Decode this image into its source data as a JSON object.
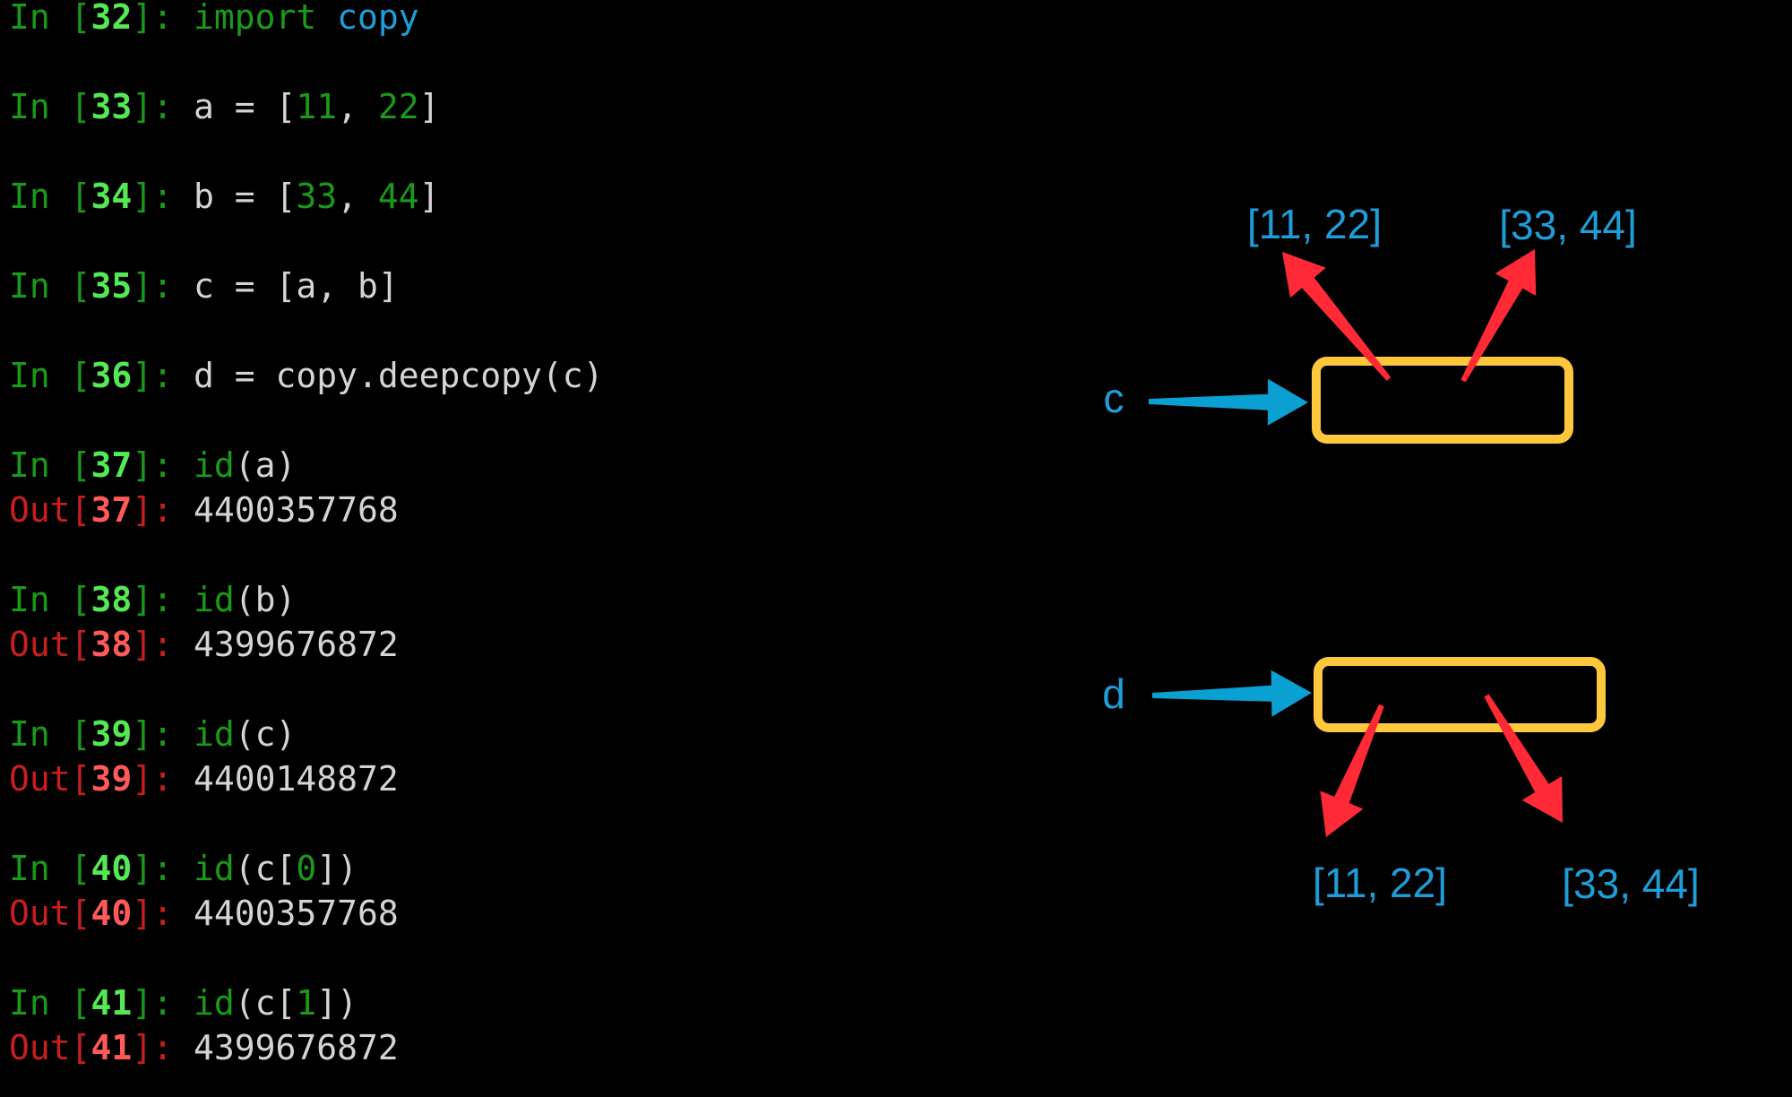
{
  "console": {
    "lines": [
      {
        "row": 0,
        "prompt": "In",
        "num": "32",
        "type": "in",
        "code": [
          {
            "t": "import",
            "c": "kw"
          },
          {
            "t": " ",
            "c": "txt"
          },
          {
            "t": "copy",
            "c": "mod"
          }
        ]
      },
      {
        "row": 2,
        "prompt": "In",
        "num": "33",
        "type": "in",
        "code": [
          {
            "t": "a = [",
            "c": "txt"
          },
          {
            "t": "11",
            "c": "num"
          },
          {
            "t": ", ",
            "c": "txt"
          },
          {
            "t": "22",
            "c": "num"
          },
          {
            "t": "]",
            "c": "txt"
          }
        ]
      },
      {
        "row": 4,
        "prompt": "In",
        "num": "34",
        "type": "in",
        "code": [
          {
            "t": "b = [",
            "c": "txt"
          },
          {
            "t": "33",
            "c": "num"
          },
          {
            "t": ", ",
            "c": "txt"
          },
          {
            "t": "44",
            "c": "num"
          },
          {
            "t": "]",
            "c": "txt"
          }
        ]
      },
      {
        "row": 6,
        "prompt": "In",
        "num": "35",
        "type": "in",
        "code": [
          {
            "t": "c = [a, b]",
            "c": "txt"
          }
        ]
      },
      {
        "row": 8,
        "prompt": "In",
        "num": "36",
        "type": "in",
        "code": [
          {
            "t": "d = copy.deepcopy(c)",
            "c": "txt"
          }
        ]
      },
      {
        "row": 10,
        "prompt": "In",
        "num": "37",
        "type": "in",
        "code": [
          {
            "t": "id",
            "c": "kw"
          },
          {
            "t": "(a)",
            "c": "txt"
          }
        ]
      },
      {
        "row": 11,
        "prompt": "Out",
        "num": "37",
        "type": "out",
        "code": [
          {
            "t": "4400357768",
            "c": "txt"
          }
        ]
      },
      {
        "row": 13,
        "prompt": "In",
        "num": "38",
        "type": "in",
        "code": [
          {
            "t": "id",
            "c": "kw"
          },
          {
            "t": "(b)",
            "c": "txt"
          }
        ]
      },
      {
        "row": 14,
        "prompt": "Out",
        "num": "38",
        "type": "out",
        "code": [
          {
            "t": "4399676872",
            "c": "txt"
          }
        ]
      },
      {
        "row": 16,
        "prompt": "In",
        "num": "39",
        "type": "in",
        "code": [
          {
            "t": "id",
            "c": "kw"
          },
          {
            "t": "(c)",
            "c": "txt"
          }
        ]
      },
      {
        "row": 17,
        "prompt": "Out",
        "num": "39",
        "type": "out",
        "code": [
          {
            "t": "4400148872",
            "c": "txt"
          }
        ]
      },
      {
        "row": 19,
        "prompt": "In",
        "num": "40",
        "type": "in",
        "code": [
          {
            "t": "id",
            "c": "kw"
          },
          {
            "t": "(c[",
            "c": "txt"
          },
          {
            "t": "0",
            "c": "num"
          },
          {
            "t": "])",
            "c": "txt"
          }
        ]
      },
      {
        "row": 20,
        "prompt": "Out",
        "num": "40",
        "type": "out",
        "code": [
          {
            "t": "4400357768",
            "c": "txt"
          }
        ]
      },
      {
        "row": 22,
        "prompt": "In",
        "num": "41",
        "type": "in",
        "code": [
          {
            "t": "id",
            "c": "kw"
          },
          {
            "t": "(c[",
            "c": "txt"
          },
          {
            "t": "1",
            "c": "num"
          },
          {
            "t": "])",
            "c": "txt"
          }
        ]
      },
      {
        "row": 23,
        "prompt": "Out",
        "num": "41",
        "type": "out",
        "code": [
          {
            "t": "4399676872",
            "c": "txt"
          }
        ]
      }
    ]
  },
  "diagram": {
    "colors": {
      "label": "#1e9ed8",
      "box": "#ffc83c",
      "ref_arrow": "#ff2a35",
      "var_arrow": "#0aa0d2"
    },
    "c_label": "c",
    "d_label": "d",
    "c_targets": [
      "[11, 22]",
      "[33, 44]"
    ],
    "d_targets": [
      "[11, 22]",
      "[33, 44]"
    ]
  }
}
